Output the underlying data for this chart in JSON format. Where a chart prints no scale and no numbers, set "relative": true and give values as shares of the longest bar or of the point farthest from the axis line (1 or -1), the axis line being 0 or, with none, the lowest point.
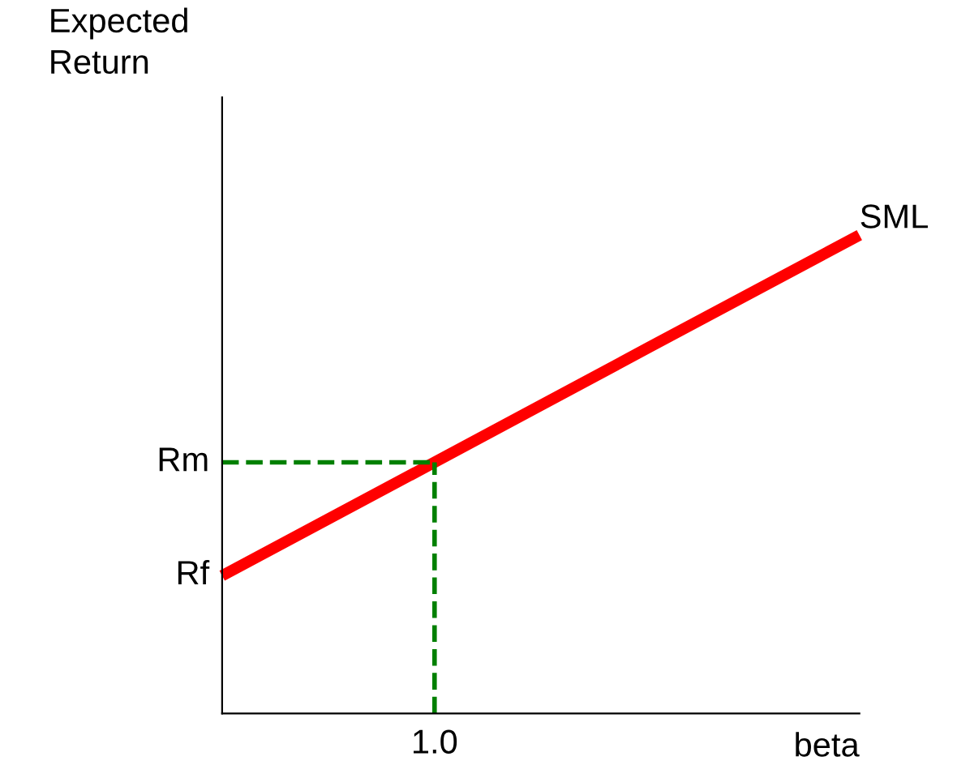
{
  "chart_data": {
    "type": "line",
    "relative": true,
    "xlabel": "beta",
    "ylabel": "Expected\nReturn",
    "categories": [
      null,
      null,
      null,
      null
    ],
    "series": [
      {
        "name": "SML",
        "color": "#ff0000",
        "values": [
          0.288,
          0.525,
          0.763,
          1
        ]
      }
    ],
    "ref_lines": [
      {
        "axis": "y",
        "value": 0.525,
        "label": "Rm",
        "color": "#008000",
        "line_style": "dashed"
      }
    ],
    "annotations": [
      "1.0",
      "Rf"
    ],
    "marker": "none",
    "line_style": "solid"
  }
}
